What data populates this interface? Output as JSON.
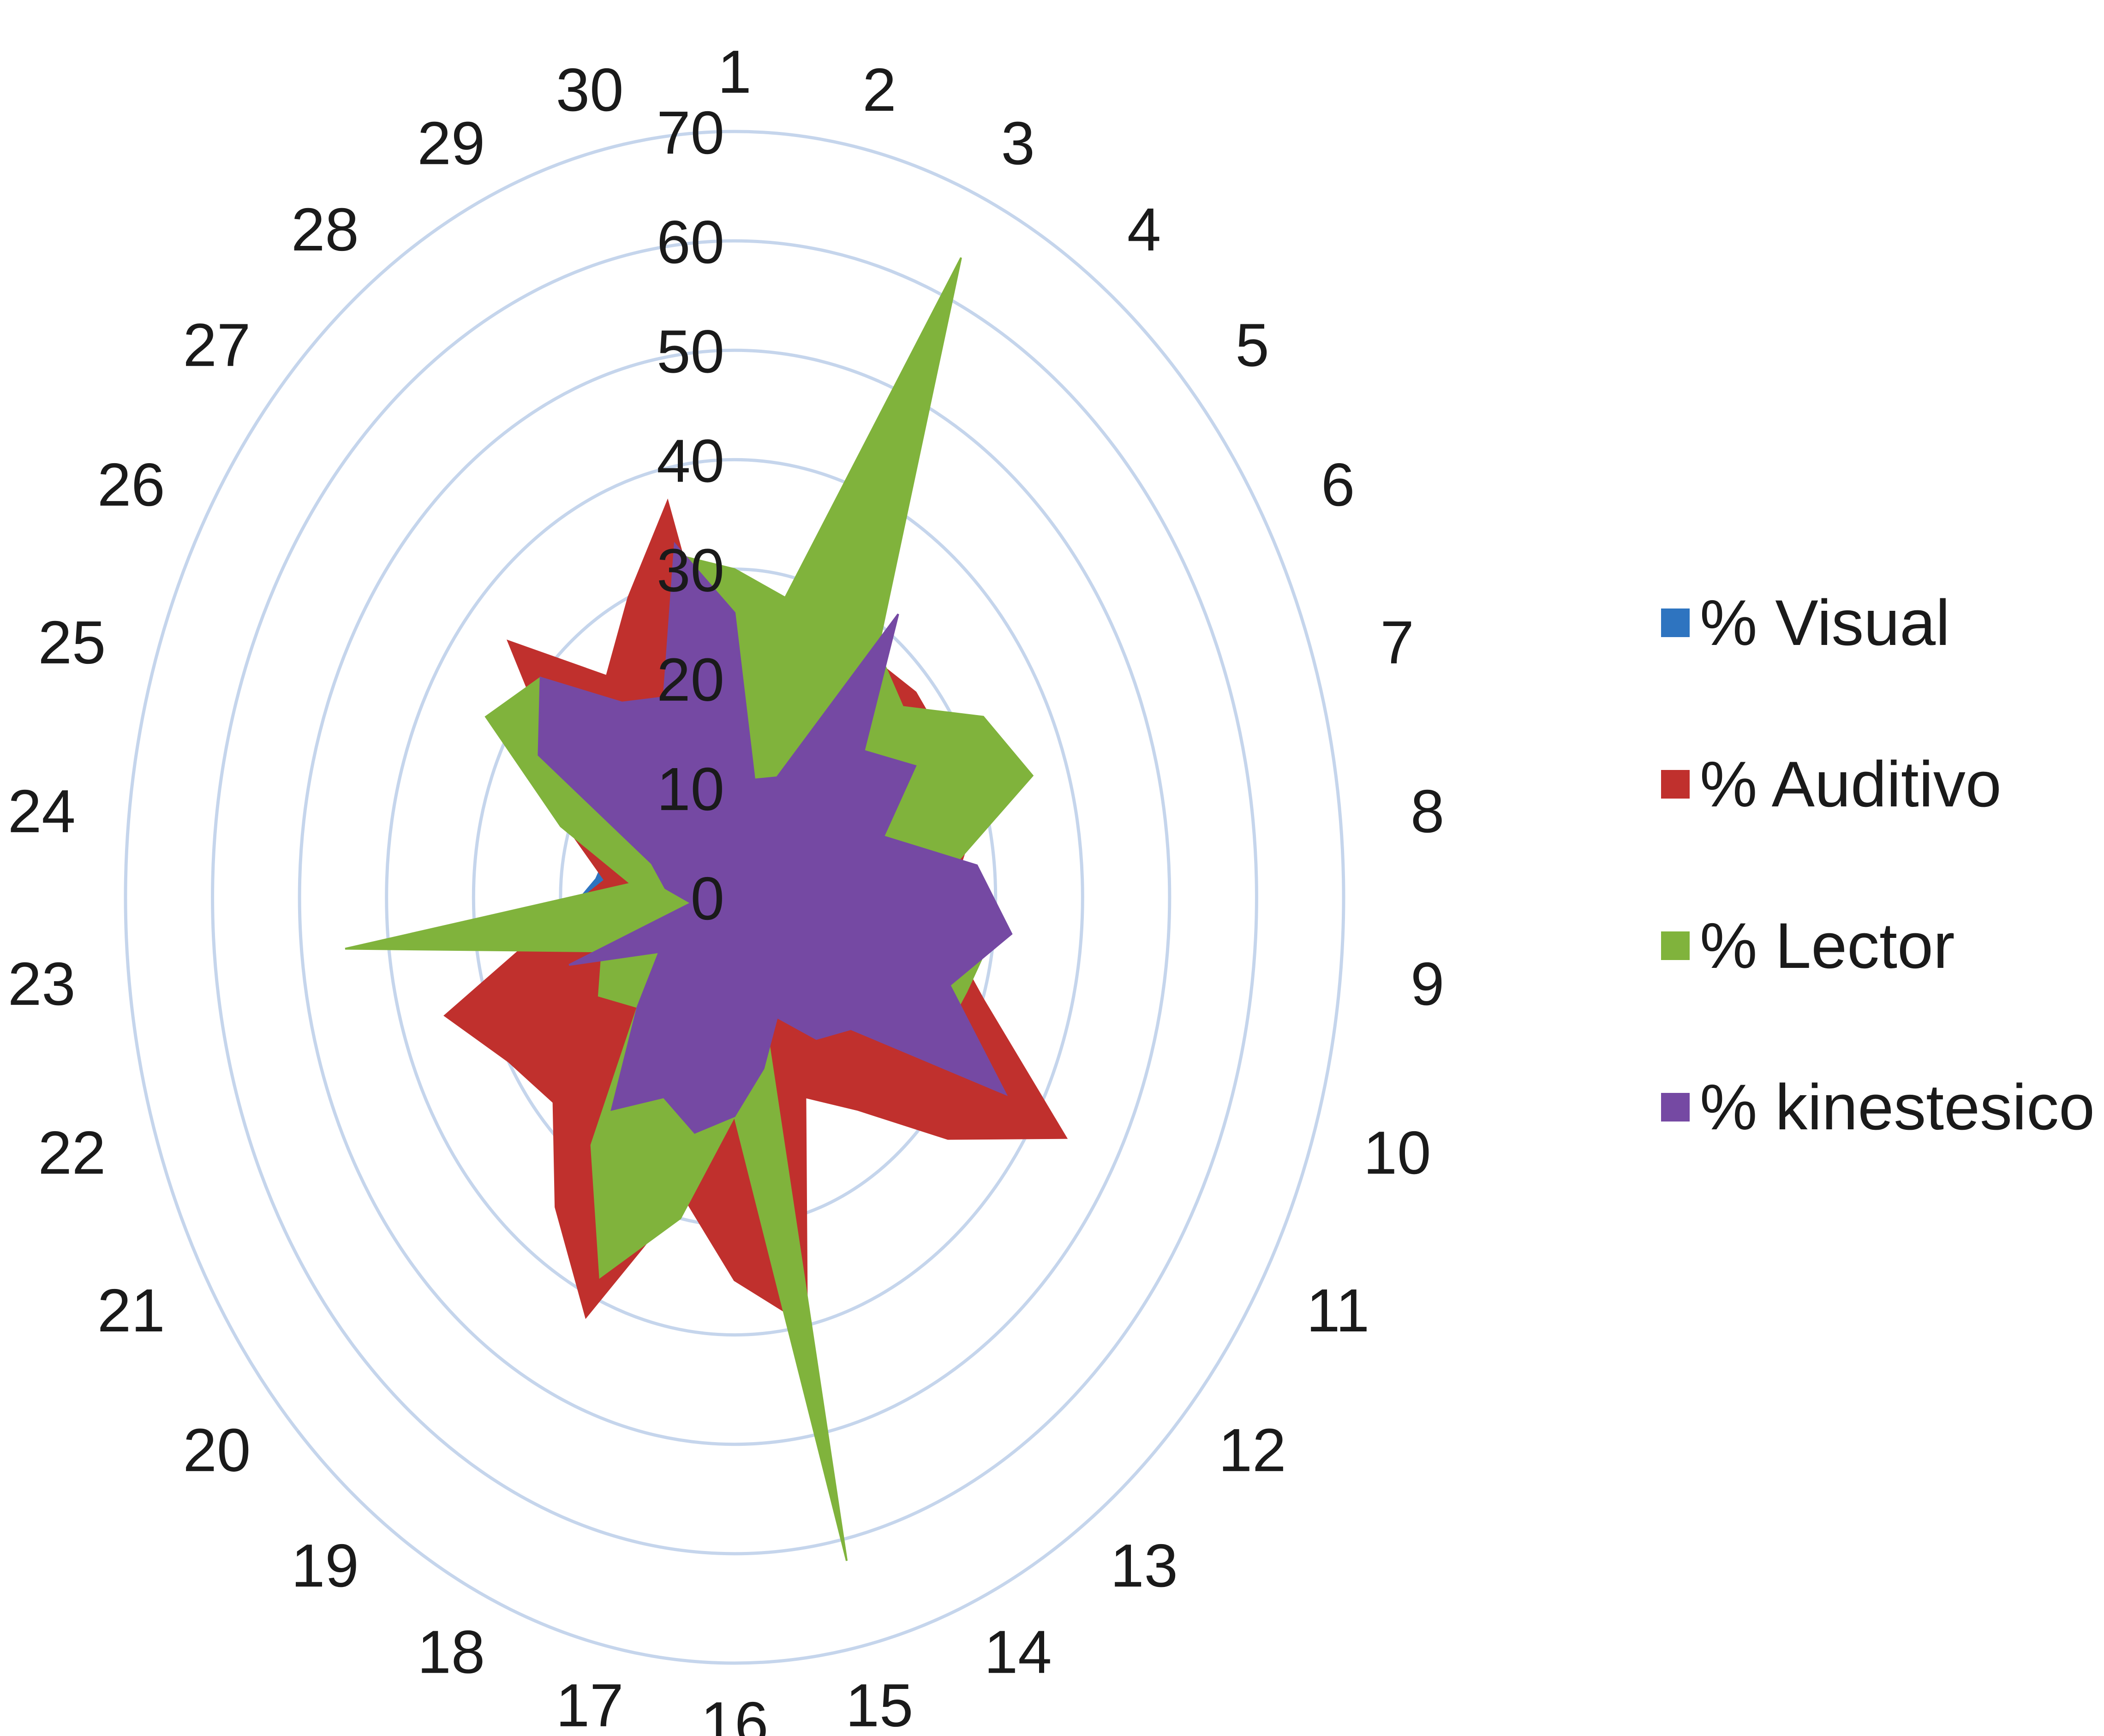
{
  "chart_data": {
    "type": "radar",
    "categories": [
      "1",
      "2",
      "3",
      "4",
      "5",
      "6",
      "7",
      "8",
      "9",
      "10",
      "11",
      "12",
      "13",
      "14",
      "15",
      "16",
      "17",
      "18",
      "19",
      "20",
      "21",
      "22",
      "23",
      "24",
      "25",
      "26",
      "27",
      "28",
      "29",
      "30"
    ],
    "r_ticks": [
      "0",
      "10",
      "20",
      "30",
      "40",
      "50",
      "60",
      "70"
    ],
    "rlim": [
      0,
      70
    ],
    "grid": true,
    "legend_position": "right",
    "series": [
      {
        "name": "% Visual",
        "color": "#2e74c0",
        "values": [
          5,
          8,
          10,
          14,
          18,
          16,
          22,
          20,
          21,
          20,
          27,
          24,
          18,
          16,
          20,
          22,
          26,
          30,
          28,
          27,
          24,
          22,
          20,
          16,
          15,
          14,
          12,
          10,
          9,
          6
        ]
      },
      {
        "name": "% Auditivo",
        "color": "#c0302d",
        "values": [
          14,
          12,
          18,
          27,
          28,
          28,
          30,
          26,
          24,
          30,
          44,
          33,
          24,
          20,
          40,
          35,
          28,
          42,
          35,
          28,
          30,
          35,
          21,
          15,
          20,
          23,
          35,
          25,
          30,
          37
        ]
      },
      {
        "name": "% Lector",
        "color": "#80b33c",
        "values": [
          30,
          28,
          64,
          28,
          26,
          33,
          36,
          25,
          30,
          28,
          27,
          10,
          12,
          6,
          62,
          20,
          30,
          38,
          28,
          15,
          18,
          16,
          45,
          12,
          21,
          33,
          30,
          20,
          15,
          32
        ]
      },
      {
        "name": "% kinestesico",
        "color": "#7549a3",
        "values": [
          26,
          11,
          12,
          32,
          20,
          24,
          18,
          28,
          32,
          26,
          36,
          18,
          16,
          12,
          16,
          20,
          22,
          20,
          24,
          15,
          10,
          20,
          5,
          8,
          10,
          26,
          30,
          22,
          20,
          33
        ]
      }
    ]
  }
}
